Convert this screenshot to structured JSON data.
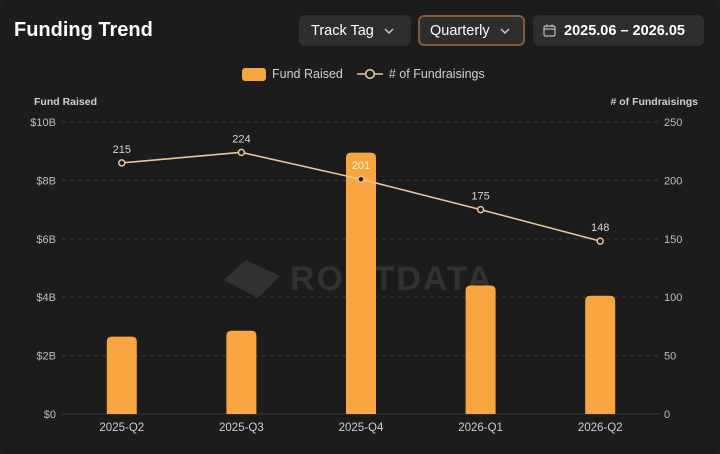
{
  "header": {
    "title": "Funding Trend",
    "track_tag_label": "Track Tag",
    "period_label": "Quarterly",
    "date_range": "2025.06 – 2026.05"
  },
  "legend": {
    "bar_label": "Fund Raised",
    "line_label": "# of Fundraisings"
  },
  "watermark": "ROOTDATA",
  "colors": {
    "bar": "#f9a640",
    "line": "#e8c79a",
    "accent_border": "#8a5a38"
  },
  "chart_data": {
    "type": "bar",
    "categories": [
      "2025-Q2",
      "2025-Q3",
      "2025-Q4",
      "2026-Q1",
      "2026-Q2"
    ],
    "series": [
      {
        "name": "Fund Raised",
        "type": "bar",
        "axis": "left",
        "values": [
          2.65,
          2.85,
          8.95,
          4.4,
          4.05
        ]
      },
      {
        "name": "# of Fundraisings",
        "type": "line",
        "axis": "right",
        "values": [
          215,
          224,
          201,
          175,
          148
        ]
      }
    ],
    "ylabel": "Fund Raised",
    "ylabel_right": "# of Fundraisings",
    "ylim": [
      0,
      10
    ],
    "ylim_right": [
      0,
      250
    ],
    "yticks": [
      "$0",
      "$2B",
      "$4B",
      "$6B",
      "$8B",
      "$10B"
    ],
    "yticks_right": [
      "0",
      "50",
      "100",
      "150",
      "200",
      "250"
    ],
    "grid": true,
    "legend_position": "top-center"
  }
}
